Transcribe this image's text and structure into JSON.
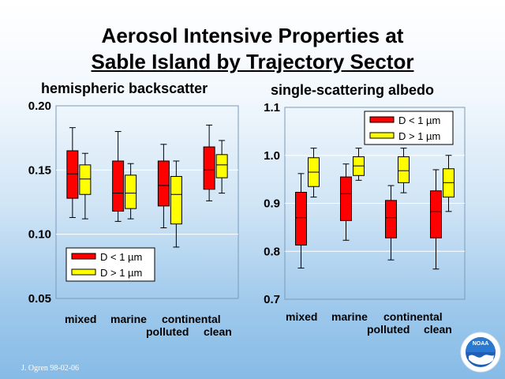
{
  "header": {
    "title_line1": "Aerosol Intensive Properties at",
    "title_line2": "Sable Island by Trajectory Sector"
  },
  "footer": {
    "credit": "J. Ogren 98-02-06"
  },
  "logo": {
    "text": "NOAA"
  },
  "chart_data": [
    {
      "type": "box",
      "title": "hemispheric backscatter",
      "categories": [
        "mixed",
        "marine",
        "continental polluted",
        "continental clean"
      ],
      "category_label_lines": [
        [
          "mixed",
          "marine",
          "continental"
        ],
        [
          "polluted",
          "clean"
        ]
      ],
      "ylim": [
        0.05,
        0.2
      ],
      "yticks": [
        0.05,
        0.1,
        0.15,
        0.2
      ],
      "ytick_labels": [
        "0.05",
        "0.10",
        "0.15",
        "0.20"
      ],
      "grid": true,
      "legend_position": "bottom-left",
      "series": [
        {
          "name": "D < 1 µm",
          "color": "#ff0000",
          "boxes": [
            {
              "min": 0.113,
              "q1": 0.128,
              "median": 0.147,
              "q3": 0.165,
              "max": 0.183
            },
            {
              "min": 0.11,
              "q1": 0.118,
              "median": 0.132,
              "q3": 0.157,
              "max": 0.18
            },
            {
              "min": 0.105,
              "q1": 0.122,
              "median": 0.138,
              "q3": 0.157,
              "max": 0.17
            },
            {
              "min": 0.126,
              "q1": 0.135,
              "median": 0.15,
              "q3": 0.168,
              "max": 0.185
            }
          ]
        },
        {
          "name": "D > 1 µm",
          "color": "#ffff00",
          "boxes": [
            {
              "min": 0.112,
              "q1": 0.131,
              "median": 0.143,
              "q3": 0.154,
              "max": 0.163
            },
            {
              "min": 0.112,
              "q1": 0.12,
              "median": 0.132,
              "q3": 0.146,
              "max": 0.155
            },
            {
              "min": 0.09,
              "q1": 0.108,
              "median": 0.131,
              "q3": 0.145,
              "max": 0.157
            },
            {
              "min": 0.132,
              "q1": 0.144,
              "median": 0.154,
              "q3": 0.162,
              "max": 0.173
            }
          ]
        }
      ]
    },
    {
      "type": "box",
      "title": "single-scattering albedo",
      "categories": [
        "mixed",
        "marine",
        "continental polluted",
        "continental clean"
      ],
      "category_label_lines": [
        [
          "mixed",
          "marine",
          "continental"
        ],
        [
          "polluted",
          "clean"
        ]
      ],
      "ylim": [
        0.7,
        1.1
      ],
      "yticks": [
        0.7,
        0.8,
        0.9,
        1.0,
        1.1
      ],
      "ytick_labels": [
        "0.7",
        "0.8",
        "0.9",
        "1.0",
        "1.1"
      ],
      "grid": true,
      "legend_position": "top-right",
      "series": [
        {
          "name": "D < 1 µm",
          "color": "#ff0000",
          "boxes": [
            {
              "min": 0.765,
              "q1": 0.813,
              "median": 0.87,
              "q3": 0.923,
              "max": 0.962
            },
            {
              "min": 0.823,
              "q1": 0.864,
              "median": 0.92,
              "q3": 0.955,
              "max": 0.982
            },
            {
              "min": 0.782,
              "q1": 0.828,
              "median": 0.87,
              "q3": 0.906,
              "max": 0.937
            },
            {
              "min": 0.763,
              "q1": 0.828,
              "median": 0.883,
              "q3": 0.926,
              "max": 0.97
            }
          ]
        },
        {
          "name": "D > 1 µm",
          "color": "#ffff00",
          "boxes": [
            {
              "min": 0.913,
              "q1": 0.935,
              "median": 0.965,
              "q3": 0.995,
              "max": 1.015
            },
            {
              "min": 0.948,
              "q1": 0.958,
              "median": 0.978,
              "q3": 0.997,
              "max": 1.015
            },
            {
              "min": 0.922,
              "q1": 0.943,
              "median": 0.968,
              "q3": 0.997,
              "max": 1.015
            },
            {
              "min": 0.883,
              "q1": 0.913,
              "median": 0.943,
              "q3": 0.972,
              "max": 1.0
            }
          ]
        }
      ]
    }
  ]
}
